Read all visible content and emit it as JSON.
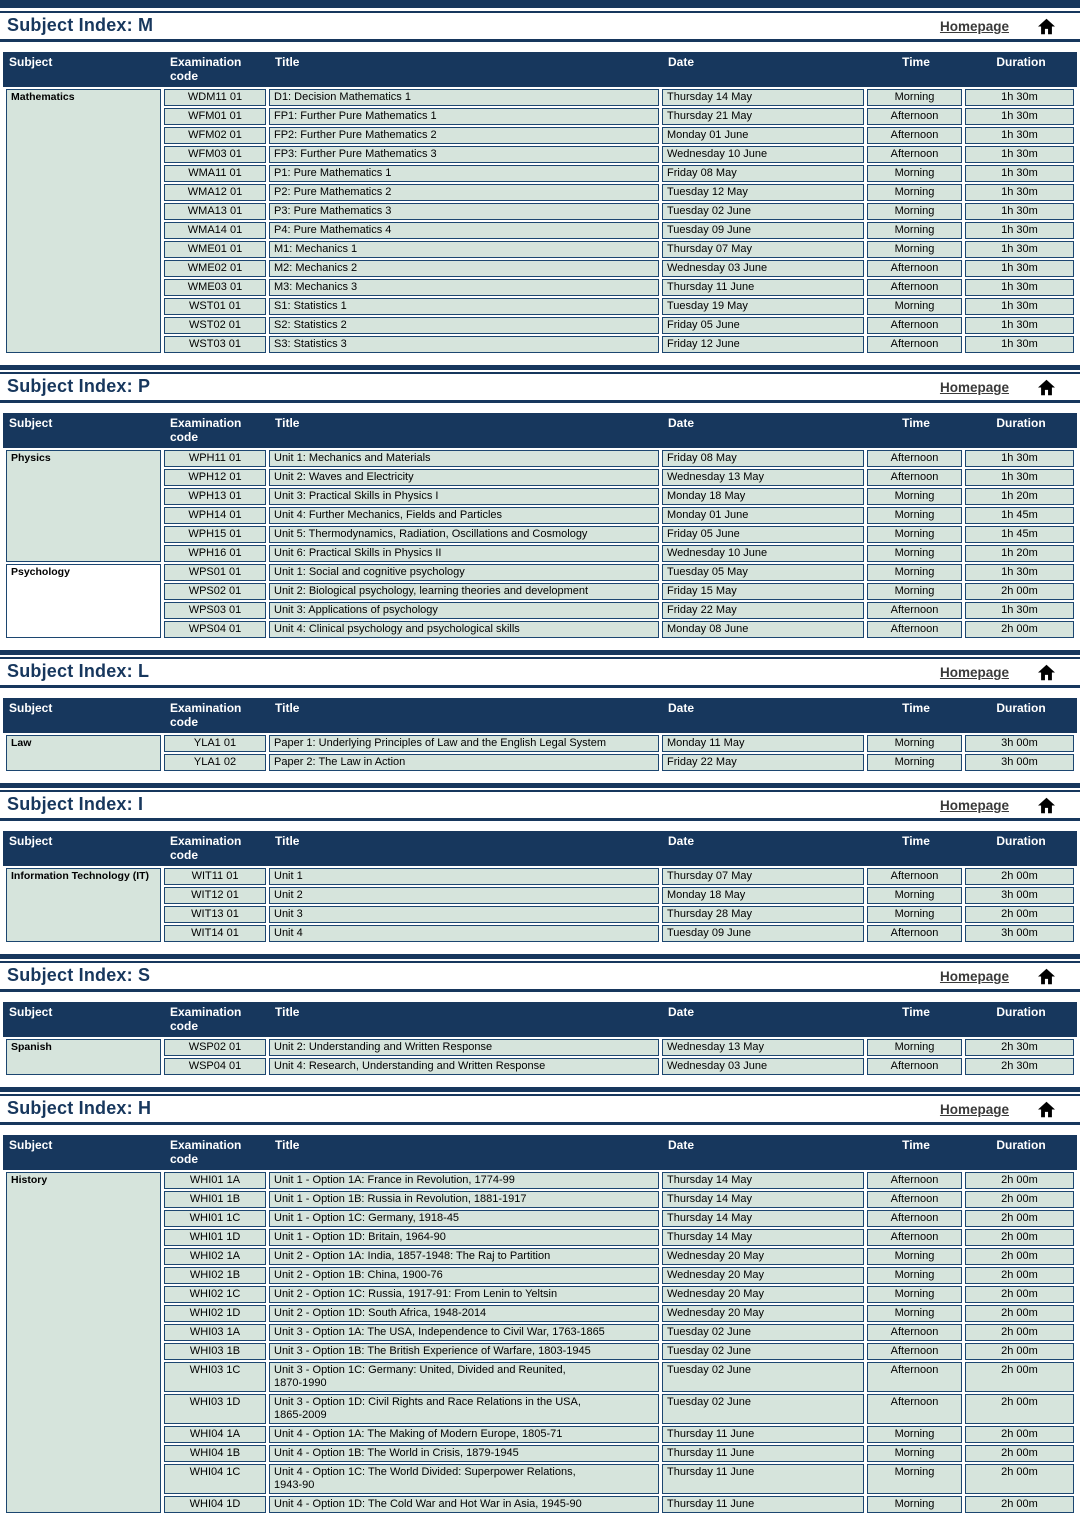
{
  "chrome": {
    "homepage_label": "Homepage",
    "home_icon": "home-icon"
  },
  "columns": [
    "Subject",
    "Examination code",
    "Title",
    "Date",
    "Time",
    "Duration"
  ],
  "colors": {
    "navy_header": "#17375d",
    "row_background": "#d6e4dc",
    "subject_cell_green": "#d6e4dc",
    "subject_cell_white": "#ffffff",
    "header_text": "#ffffff",
    "homepage_link_text": "#3a3a3a",
    "home_icon": "#000000",
    "cell_border": "#1c4670",
    "subject_border": "#161616"
  },
  "sections": [
    {
      "heading": "Subject Index: M",
      "groups": [
        {
          "subject": "Mathematics",
          "subject_bg": "#d6e4dc",
          "rows": [
            {
              "code": "WDM11 01",
              "title": "D1: Decision Mathematics 1",
              "date": "Thursday 14 May",
              "time": "Morning",
              "duration": "1h 30m"
            },
            {
              "code": "WFM01 01",
              "title": "FP1: Further Pure Mathematics 1",
              "date": "Thursday 21 May",
              "time": "Afternoon",
              "duration": "1h 30m"
            },
            {
              "code": "WFM02 01",
              "title": "FP2: Further Pure Mathematics 2",
              "date": "Monday 01 June",
              "time": "Afternoon",
              "duration": "1h 30m"
            },
            {
              "code": "WFM03 01",
              "title": "FP3: Further Pure Mathematics 3",
              "date": "Wednesday 10 June",
              "time": "Afternoon",
              "duration": "1h 30m"
            },
            {
              "code": "WMA11 01",
              "title": "P1: Pure Mathematics 1",
              "date": "Friday 08 May",
              "time": "Morning",
              "duration": "1h 30m"
            },
            {
              "code": "WMA12 01",
              "title": "P2: Pure Mathematics 2",
              "date": "Tuesday 12 May",
              "time": "Morning",
              "duration": "1h 30m"
            },
            {
              "code": "WMA13 01",
              "title": "P3: Pure Mathematics 3",
              "date": "Tuesday 02 June",
              "time": "Morning",
              "duration": "1h 30m"
            },
            {
              "code": "WMA14 01",
              "title": "P4: Pure Mathematics 4",
              "date": "Tuesday 09 June",
              "time": "Morning",
              "duration": "1h 30m"
            },
            {
              "code": "WME01 01",
              "title": "M1: Mechanics 1",
              "date": "Thursday 07 May",
              "time": "Morning",
              "duration": "1h 30m"
            },
            {
              "code": "WME02 01",
              "title": "M2: Mechanics 2",
              "date": "Wednesday 03 June",
              "time": "Afternoon",
              "duration": "1h 30m"
            },
            {
              "code": "WME03 01",
              "title": "M3: Mechanics 3",
              "date": "Thursday 11 June",
              "time": "Afternoon",
              "duration": "1h 30m"
            },
            {
              "code": "WST01 01",
              "title": "S1: Statistics 1",
              "date": "Tuesday 19 May",
              "time": "Morning",
              "duration": "1h 30m"
            },
            {
              "code": "WST02 01",
              "title": "S2: Statistics 2",
              "date": "Friday 05 June",
              "time": "Afternoon",
              "duration": "1h 30m"
            },
            {
              "code": "WST03 01",
              "title": "S3: Statistics 3",
              "date": "Friday 12 June",
              "time": "Afternoon",
              "duration": "1h 30m"
            }
          ]
        }
      ]
    },
    {
      "heading": "Subject Index: P",
      "groups": [
        {
          "subject": "Physics",
          "subject_bg": "#d6e4dc",
          "rows": [
            {
              "code": "WPH11 01",
              "title": "Unit 1: Mechanics and Materials",
              "date": "Friday 08 May",
              "time": "Afternoon",
              "duration": "1h 30m"
            },
            {
              "code": "WPH12 01",
              "title": "Unit 2: Waves and Electricity",
              "date": "Wednesday 13 May",
              "time": "Afternoon",
              "duration": "1h 30m"
            },
            {
              "code": "WPH13 01",
              "title": "Unit 3: Practical Skills in Physics I",
              "date": "Monday 18 May",
              "time": "Morning",
              "duration": "1h 20m"
            },
            {
              "code": "WPH14 01",
              "title": "Unit 4: Further Mechanics, Fields and Particles",
              "date": "Monday 01 June",
              "time": "Morning",
              "duration": "1h 45m"
            },
            {
              "code": "WPH15 01",
              "title": "Unit 5: Thermodynamics, Radiation, Oscillations and Cosmology",
              "date": "Friday 05 June",
              "time": "Morning",
              "duration": "1h 45m"
            },
            {
              "code": "WPH16 01",
              "title": "Unit 6: Practical Skills in Physics II",
              "date": "Wednesday 10 June",
              "time": "Morning",
              "duration": "1h 20m"
            }
          ]
        },
        {
          "subject": "Psychology",
          "subject_bg": "#ffffff",
          "rows": [
            {
              "code": "WPS01 01",
              "title": "Unit 1: Social and cognitive psychology",
              "date": "Tuesday 05 May",
              "time": "Morning",
              "duration": "1h 30m"
            },
            {
              "code": "WPS02 01",
              "title": "Unit 2: Biological psychology, learning theories and development",
              "date": "Friday 15 May",
              "time": "Morning",
              "duration": "2h 00m"
            },
            {
              "code": "WPS03 01",
              "title": "Unit 3: Applications of psychology",
              "date": "Friday 22 May",
              "time": "Afternoon",
              "duration": "1h 30m"
            },
            {
              "code": "WPS04 01",
              "title": "Unit 4: Clinical psychology and psychological skills",
              "date": "Monday 08 June",
              "time": "Afternoon",
              "duration": "2h 00m"
            }
          ]
        }
      ]
    },
    {
      "heading": "Subject Index: L",
      "groups": [
        {
          "subject": "Law",
          "subject_bg": "#d6e4dc",
          "rows": [
            {
              "code": "YLA1 01",
              "title": "Paper 1: Underlying Principles of Law and the English Legal System",
              "date": "Monday 11 May",
              "time": "Morning",
              "duration": "3h 00m"
            },
            {
              "code": "YLA1 02",
              "title": "Paper 2: The Law in Action",
              "date": "Friday 22 May",
              "time": "Morning",
              "duration": "3h 00m"
            }
          ]
        }
      ]
    },
    {
      "heading": "Subject Index: I",
      "groups": [
        {
          "subject": "Information Technology (IT)",
          "subject_bg": "#d6e4dc",
          "rows": [
            {
              "code": "WIT11 01",
              "title": "Unit 1",
              "date": "Thursday 07 May",
              "time": "Afternoon",
              "duration": "2h 00m"
            },
            {
              "code": "WIT12 01",
              "title": "Unit 2",
              "date": "Monday 18 May",
              "time": "Morning",
              "duration": "3h 00m"
            },
            {
              "code": "WIT13 01",
              "title": "Unit 3",
              "date": "Thursday 28 May",
              "time": "Morning",
              "duration": "2h 00m"
            },
            {
              "code": "WIT14 01",
              "title": "Unit 4",
              "date": "Tuesday 09 June",
              "time": "Afternoon",
              "duration": "3h 00m"
            }
          ]
        }
      ]
    },
    {
      "heading": "Subject Index: S",
      "groups": [
        {
          "subject": "Spanish",
          "subject_bg": "#d6e4dc",
          "rows": [
            {
              "code": "WSP02 01",
              "title": "Unit 2: Understanding and Written Response",
              "date": "Wednesday 13 May",
              "time": "Morning",
              "duration": "2h 30m"
            },
            {
              "code": "WSP04 01",
              "title": "Unit 4: Research, Understanding and Written Response",
              "date": "Wednesday 03 June",
              "time": "Afternoon",
              "duration": "2h 30m"
            }
          ]
        }
      ]
    },
    {
      "heading": "Subject Index: H",
      "groups": [
        {
          "subject": "History",
          "subject_bg": "#d6e4dc",
          "rows": [
            {
              "code": "WHI01 1A",
              "title": "Unit 1 - Option 1A: France in Revolution, 1774-99",
              "date": "Thursday 14 May",
              "time": "Afternoon",
              "duration": "2h 00m"
            },
            {
              "code": "WHI01 1B",
              "title": "Unit 1 - Option 1B: Russia in Revolution, 1881-1917",
              "date": "Thursday 14 May",
              "time": "Afternoon",
              "duration": "2h 00m"
            },
            {
              "code": "WHI01 1C",
              "title": "Unit 1 - Option 1C: Germany, 1918-45",
              "date": "Thursday 14 May",
              "time": "Afternoon",
              "duration": "2h 00m"
            },
            {
              "code": "WHI01 1D",
              "title": "Unit 1 - Option 1D: Britain, 1964-90",
              "date": "Thursday 14 May",
              "time": "Afternoon",
              "duration": "2h 00m"
            },
            {
              "code": "WHI02 1A",
              "title": "Unit 2 - Option 1A: India, 1857-1948: The Raj to Partition",
              "date": "Wednesday 20 May",
              "time": "Morning",
              "duration": "2h 00m"
            },
            {
              "code": "WHI02 1B",
              "title": "Unit 2 - Option 1B: China, 1900-76",
              "date": "Wednesday 20 May",
              "time": "Morning",
              "duration": "2h 00m"
            },
            {
              "code": "WHI02 1C",
              "title": "Unit 2 - Option 1C: Russia, 1917-91: From Lenin to Yeltsin",
              "date": "Wednesday 20 May",
              "time": "Morning",
              "duration": "2h 00m"
            },
            {
              "code": "WHI02 1D",
              "title": "Unit 2 - Option 1D: South Africa, 1948-2014",
              "date": "Wednesday 20 May",
              "time": "Morning",
              "duration": "2h 00m"
            },
            {
              "code": "WHI03 1A",
              "title": "Unit 3 - Option 1A: The USA, Independence to Civil War, 1763-1865",
              "date": "Tuesday 02 June",
              "time": "Afternoon",
              "duration": "2h 00m"
            },
            {
              "code": "WHI03 1B",
              "title": "Unit 3 - Option 1B: The British Experience of Warfare, 1803-1945",
              "date": "Tuesday 02 June",
              "time": "Afternoon",
              "duration": "2h 00m"
            },
            {
              "code": "WHI03 1C",
              "title": "Unit 3 - Option 1C: Germany: United, Divided and Reunited,\n1870-1990",
              "date": "Tuesday 02 June",
              "time": "Afternoon",
              "duration": "2h 00m"
            },
            {
              "code": "WHI03 1D",
              "title": "Unit 3 - Option 1D: Civil Rights and Race Relations in the USA,\n1865-2009",
              "date": "Tuesday 02 June",
              "time": "Afternoon",
              "duration": "2h 00m"
            },
            {
              "code": "WHI04 1A",
              "title": "Unit 4 - Option 1A: The Making of Modern Europe, 1805-71",
              "date": "Thursday 11 June",
              "time": "Morning",
              "duration": "2h 00m"
            },
            {
              "code": "WHI04 1B",
              "title": "Unit 4 - Option 1B: The World in Crisis, 1879-1945",
              "date": "Thursday 11 June",
              "time": "Morning",
              "duration": "2h 00m"
            },
            {
              "code": "WHI04 1C",
              "title": "Unit 4 - Option 1C: The World Divided: Superpower Relations,\n1943-90",
              "date": "Thursday 11 June",
              "time": "Morning",
              "duration": "2h 00m"
            },
            {
              "code": "WHI04 1D",
              "title": "Unit 4 - Option 1D: The Cold War and Hot War in Asia, 1945-90",
              "date": "Thursday 11 June",
              "time": "Morning",
              "duration": "2h 00m"
            }
          ]
        }
      ]
    }
  ]
}
